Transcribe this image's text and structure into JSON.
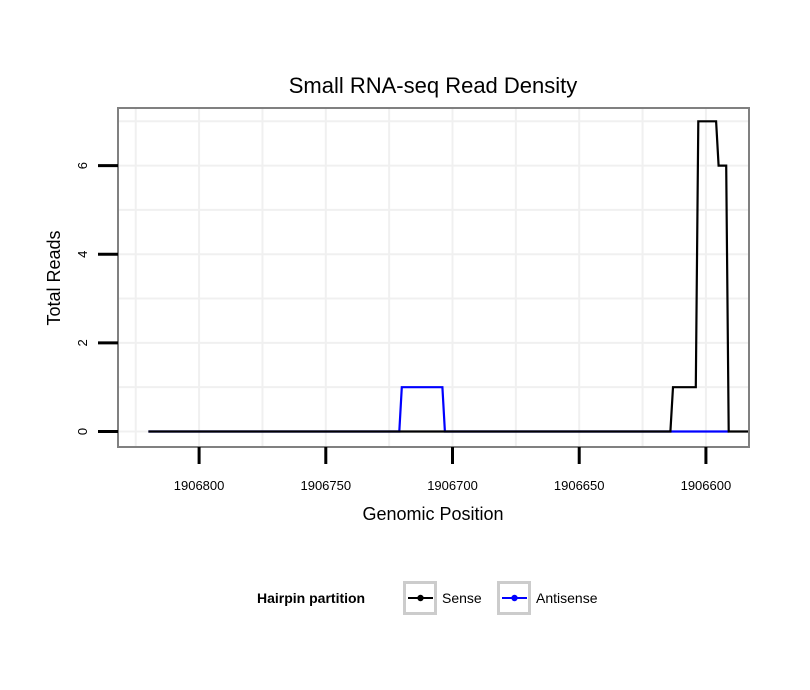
{
  "chart_data": {
    "type": "line",
    "title": "Small RNA-seq Read Density",
    "xlabel": "Genomic Position",
    "ylabel": "Total Reads",
    "x_reversed": true,
    "xlim": [
      1906832,
      1906583
    ],
    "ylim": [
      -0.35,
      7.3
    ],
    "xticks": [
      1906800,
      1906750,
      1906700,
      1906650,
      1906600
    ],
    "xtick_labels": [
      "1906800",
      "1906750",
      "1906700",
      "1906650",
      "1906600"
    ],
    "yticks": [
      0,
      2,
      4,
      6
    ],
    "ytick_labels": [
      "0",
      "2",
      "4",
      "6"
    ],
    "legend": {
      "title": "Hairpin partition",
      "position": "bottom"
    },
    "series": [
      {
        "name": "Sense",
        "color": "#000000",
        "x": [
          1906820,
          1906614,
          1906613,
          1906604,
          1906603,
          1906596,
          1906595,
          1906592,
          1906591,
          1906583
        ],
        "y": [
          0,
          0,
          1,
          1,
          7,
          7,
          6,
          6,
          0,
          0
        ]
      },
      {
        "name": "Antisense",
        "color": "#0000ff",
        "x": [
          1906820,
          1906721,
          1906720,
          1906704,
          1906703,
          1906591
        ],
        "y": [
          0,
          0,
          1,
          1,
          0,
          0
        ]
      }
    ]
  }
}
